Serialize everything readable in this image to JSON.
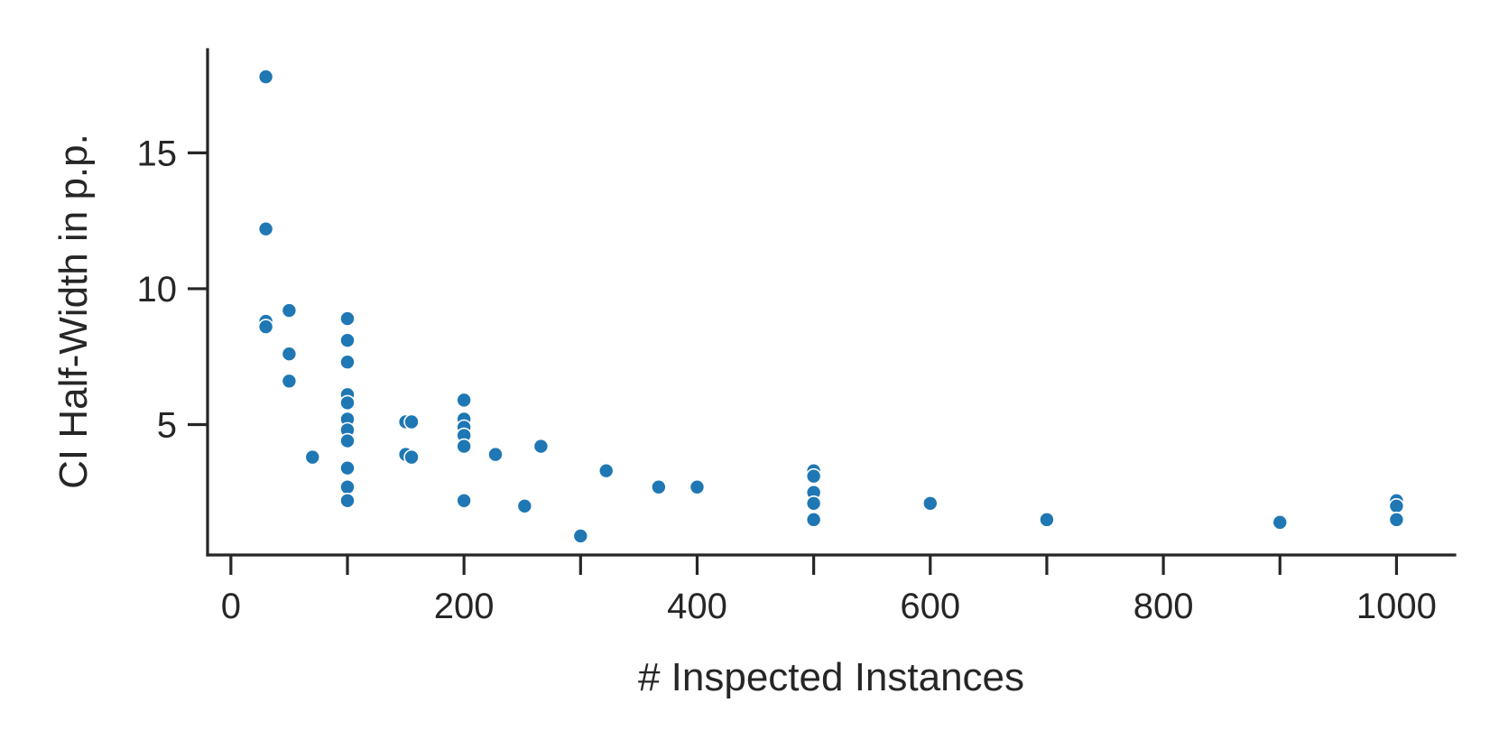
{
  "chart_data": {
    "type": "scatter",
    "xlabel": "# Inspected Instances",
    "ylabel": "CI Half-Width in p.p.",
    "xlim": [
      -20,
      1050
    ],
    "ylim": [
      0.2,
      18.8
    ],
    "xticks": [
      0,
      100,
      200,
      300,
      400,
      500,
      600,
      700,
      800,
      900,
      1000
    ],
    "xtick_labels": [
      "0",
      "",
      "200",
      "",
      "400",
      "",
      "600",
      "",
      "800",
      "",
      "1000"
    ],
    "yticks": [
      5,
      10,
      15
    ],
    "ytick_labels": [
      "5",
      "10",
      "15"
    ],
    "grid": false,
    "color": "#1f77b4",
    "x": [
      30,
      30,
      30,
      30,
      50,
      50,
      50,
      70,
      100,
      100,
      100,
      100,
      100,
      100,
      100,
      100,
      100,
      100,
      100,
      150,
      150,
      155,
      155,
      200,
      200,
      200,
      200,
      200,
      200,
      200,
      227,
      252,
      266,
      300,
      322,
      367,
      400,
      500,
      500,
      500,
      500,
      500,
      500,
      600,
      700,
      900,
      1000,
      1000,
      1000
    ],
    "y": [
      17.8,
      12.2,
      8.8,
      8.6,
      9.2,
      7.6,
      6.6,
      3.8,
      8.9,
      8.1,
      7.3,
      6.1,
      5.8,
      5.2,
      4.8,
      4.4,
      3.4,
      2.7,
      2.2,
      5.1,
      3.9,
      5.1,
      3.8,
      5.9,
      5.2,
      4.9,
      4.6,
      4.2,
      2.2,
      2.2,
      3.9,
      2.0,
      4.2,
      0.9,
      3.3,
      2.7,
      2.7,
      3.3,
      3.1,
      2.5,
      2.1,
      1.5,
      1.5,
      2.1,
      1.5,
      1.4,
      2.2,
      2.0,
      1.5
    ]
  }
}
